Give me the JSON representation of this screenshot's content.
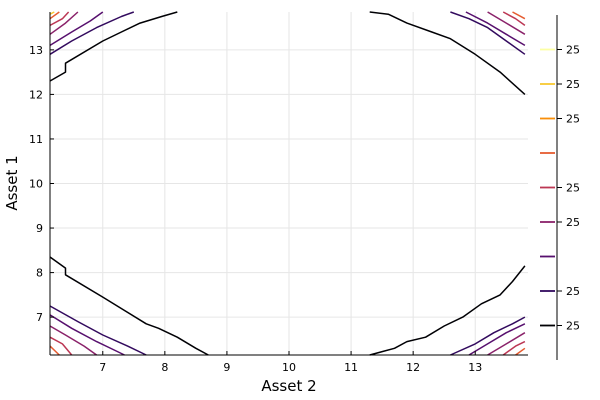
{
  "chart_data": {
    "type": "contour",
    "title": "",
    "xlabel": "Asset 2",
    "ylabel": "Asset 1",
    "xlim": [
      6.15,
      13.85
    ],
    "ylim": [
      6.15,
      13.85
    ],
    "x_ticks": [
      7,
      8,
      9,
      10,
      11,
      12,
      13
    ],
    "y_ticks": [
      7,
      8,
      9,
      10,
      11,
      12,
      13
    ],
    "grid": true,
    "colorbar": {
      "min": 0.0,
      "max": 1.0,
      "ticks": [
        {
          "pos": 0.1,
          "label": "25",
          "color": "#000004"
        },
        {
          "pos": 0.2,
          "label": "25",
          "color": "#320a5e"
        },
        {
          "pos": 0.3,
          "label": "",
          "color": "#57106e"
        },
        {
          "pos": 0.4,
          "label": "25",
          "color": "#8a226a"
        },
        {
          "pos": 0.5,
          "label": "25",
          "color": "#bc3754"
        },
        {
          "pos": 0.6,
          "label": "",
          "color": "#e55c30"
        },
        {
          "pos": 0.7,
          "label": "25",
          "color": "#f98e09"
        },
        {
          "pos": 0.8,
          "label": "25",
          "color": "#f8c932"
        },
        {
          "pos": 0.9,
          "label": "25",
          "color": "#fcffa4"
        }
      ]
    },
    "contours": [
      {
        "color": "#000004",
        "points": [
          [
            6.15,
            8.35
          ],
          [
            6.4,
            8.1
          ],
          [
            6.4,
            7.95
          ],
          [
            7.0,
            7.45
          ],
          [
            7.7,
            6.85
          ],
          [
            7.9,
            6.75
          ],
          [
            8.2,
            6.55
          ],
          [
            8.5,
            6.3
          ],
          [
            8.7,
            6.15
          ]
        ]
      },
      {
        "color": "#000004",
        "points": [
          [
            6.15,
            12.3
          ],
          [
            6.4,
            12.5
          ],
          [
            6.4,
            12.7
          ],
          [
            7.0,
            13.2
          ],
          [
            7.3,
            13.4
          ],
          [
            7.6,
            13.6
          ],
          [
            7.95,
            13.75
          ],
          [
            8.2,
            13.85
          ]
        ]
      },
      {
        "color": "#000004",
        "points": [
          [
            11.3,
            13.85
          ],
          [
            11.6,
            13.8
          ],
          [
            11.9,
            13.6
          ],
          [
            12.3,
            13.4
          ],
          [
            12.6,
            13.25
          ],
          [
            13.0,
            12.9
          ],
          [
            13.4,
            12.5
          ],
          [
            13.8,
            12.0
          ]
        ]
      },
      {
        "color": "#000004",
        "points": [
          [
            11.3,
            6.15
          ],
          [
            11.7,
            6.3
          ],
          [
            11.9,
            6.45
          ],
          [
            12.2,
            6.55
          ],
          [
            12.5,
            6.8
          ],
          [
            12.8,
            7.0
          ],
          [
            13.1,
            7.3
          ],
          [
            13.4,
            7.5
          ],
          [
            13.6,
            7.8
          ],
          [
            13.8,
            8.15
          ]
        ]
      },
      {
        "color": "#320a5e",
        "points": [
          [
            6.15,
            7.25
          ],
          [
            6.6,
            6.9
          ],
          [
            7.0,
            6.6
          ],
          [
            7.4,
            6.35
          ],
          [
            7.7,
            6.15
          ]
        ]
      },
      {
        "color": "#57106e",
        "points": [
          [
            6.15,
            7.05
          ],
          [
            6.5,
            6.75
          ],
          [
            6.9,
            6.45
          ],
          [
            7.2,
            6.25
          ],
          [
            7.35,
            6.15
          ]
        ]
      },
      {
        "color": "#8a226a",
        "points": [
          [
            6.15,
            6.8
          ],
          [
            6.4,
            6.6
          ],
          [
            6.7,
            6.35
          ],
          [
            6.9,
            6.15
          ]
        ]
      },
      {
        "color": "#bc3754",
        "points": [
          [
            6.15,
            6.55
          ],
          [
            6.35,
            6.4
          ],
          [
            6.5,
            6.15
          ]
        ]
      },
      {
        "color": "#e55c30",
        "points": [
          [
            6.15,
            6.35
          ],
          [
            6.3,
            6.15
          ]
        ]
      },
      {
        "color": "#320a5e",
        "points": [
          [
            6.15,
            12.9
          ],
          [
            6.5,
            13.2
          ],
          [
            6.9,
            13.5
          ],
          [
            7.3,
            13.75
          ],
          [
            7.5,
            13.85
          ]
        ]
      },
      {
        "color": "#57106e",
        "points": [
          [
            6.15,
            13.1
          ],
          [
            6.5,
            13.4
          ],
          [
            6.8,
            13.65
          ],
          [
            7.0,
            13.85
          ]
        ]
      },
      {
        "color": "#8a226a",
        "points": [
          [
            6.15,
            13.35
          ],
          [
            6.4,
            13.6
          ],
          [
            6.6,
            13.85
          ]
        ]
      },
      {
        "color": "#bc3754",
        "points": [
          [
            6.15,
            13.55
          ],
          [
            6.35,
            13.7
          ],
          [
            6.45,
            13.85
          ]
        ]
      },
      {
        "color": "#e55c30",
        "points": [
          [
            6.15,
            13.7
          ],
          [
            6.3,
            13.85
          ]
        ]
      },
      {
        "color": "#f8c932",
        "points": [
          [
            6.15,
            13.8
          ],
          [
            6.22,
            13.85
          ]
        ]
      },
      {
        "color": "#320a5e",
        "points": [
          [
            12.6,
            13.85
          ],
          [
            12.9,
            13.7
          ],
          [
            13.2,
            13.5
          ],
          [
            13.5,
            13.2
          ],
          [
            13.8,
            12.9
          ]
        ]
      },
      {
        "color": "#57106e",
        "points": [
          [
            12.85,
            13.85
          ],
          [
            13.2,
            13.6
          ],
          [
            13.5,
            13.35
          ],
          [
            13.8,
            13.1
          ]
        ]
      },
      {
        "color": "#8a226a",
        "points": [
          [
            13.2,
            13.85
          ],
          [
            13.5,
            13.6
          ],
          [
            13.8,
            13.35
          ]
        ]
      },
      {
        "color": "#bc3754",
        "points": [
          [
            13.45,
            13.85
          ],
          [
            13.65,
            13.7
          ],
          [
            13.8,
            13.55
          ]
        ]
      },
      {
        "color": "#e55c30",
        "points": [
          [
            13.6,
            13.85
          ],
          [
            13.8,
            13.7
          ]
        ]
      },
      {
        "color": "#320a5e",
        "points": [
          [
            12.6,
            6.15
          ],
          [
            13.0,
            6.4
          ],
          [
            13.3,
            6.65
          ],
          [
            13.6,
            6.85
          ],
          [
            13.8,
            7.0
          ]
        ]
      },
      {
        "color": "#57106e",
        "points": [
          [
            12.9,
            6.15
          ],
          [
            13.2,
            6.4
          ],
          [
            13.5,
            6.65
          ],
          [
            13.8,
            6.85
          ]
        ]
      },
      {
        "color": "#8a226a",
        "points": [
          [
            13.2,
            6.15
          ],
          [
            13.5,
            6.4
          ],
          [
            13.8,
            6.65
          ]
        ]
      },
      {
        "color": "#bc3754",
        "points": [
          [
            13.45,
            6.15
          ],
          [
            13.65,
            6.35
          ],
          [
            13.8,
            6.45
          ]
        ]
      },
      {
        "color": "#e55c30",
        "points": [
          [
            13.65,
            6.15
          ],
          [
            13.8,
            6.3
          ]
        ]
      }
    ]
  }
}
